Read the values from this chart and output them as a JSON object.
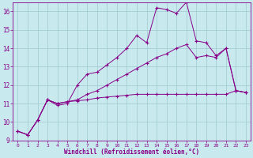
{
  "xlabel": "Windchill (Refroidissement éolien,°C)",
  "xlim": [
    -0.5,
    23.5
  ],
  "ylim": [
    9,
    16.5
  ],
  "yticks": [
    9,
    10,
    11,
    12,
    13,
    14,
    15,
    16
  ],
  "xticks": [
    0,
    1,
    2,
    3,
    4,
    5,
    6,
    7,
    8,
    9,
    10,
    11,
    12,
    13,
    14,
    15,
    16,
    17,
    18,
    19,
    20,
    21,
    22,
    23
  ],
  "background_color": "#c8eaee",
  "grid_color": "#a0c8d0",
  "line_color": "#880088",
  "line1_x": [
    0,
    1,
    2,
    3,
    4,
    5,
    6,
    7,
    8,
    9,
    10,
    11,
    12,
    13,
    14,
    15,
    16,
    17,
    18,
    19,
    20,
    21,
    22,
    23
  ],
  "line1_y": [
    9.5,
    9.3,
    10.1,
    11.2,
    10.9,
    11.0,
    12.0,
    12.6,
    12.7,
    13.1,
    13.5,
    14.0,
    14.7,
    14.3,
    16.2,
    16.1,
    15.9,
    16.5,
    14.4,
    14.3,
    13.6,
    14.0,
    11.7,
    11.6
  ],
  "line2_x": [
    0,
    1,
    2,
    3,
    4,
    5,
    6,
    7,
    8,
    9,
    10,
    11,
    12,
    13,
    14,
    15,
    16,
    17,
    18,
    19,
    20,
    21,
    22,
    23
  ],
  "line2_y": [
    9.5,
    9.3,
    10.1,
    11.2,
    11.0,
    11.1,
    11.15,
    11.2,
    11.3,
    11.35,
    11.4,
    11.45,
    11.5,
    11.5,
    11.5,
    11.5,
    11.5,
    11.5,
    11.5,
    11.5,
    11.5,
    11.5,
    11.7,
    11.6
  ],
  "line3_x": [
    0,
    1,
    2,
    3,
    4,
    5,
    6,
    7,
    8,
    9,
    10,
    11,
    12,
    13,
    14,
    15,
    16,
    17,
    18,
    19,
    20,
    21,
    22,
    23
  ],
  "line3_y": [
    9.5,
    9.3,
    10.1,
    11.2,
    11.0,
    11.1,
    11.2,
    11.5,
    11.7,
    12.0,
    12.3,
    12.6,
    12.9,
    13.2,
    13.5,
    13.7,
    14.0,
    14.2,
    13.5,
    13.6,
    13.5,
    14.0,
    11.7,
    11.6
  ]
}
